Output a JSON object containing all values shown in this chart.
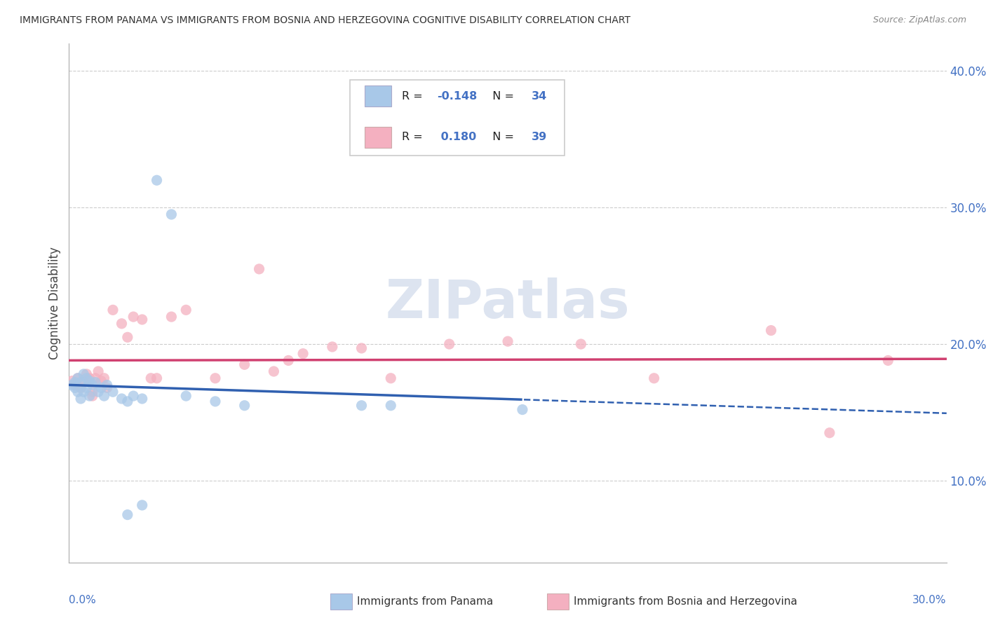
{
  "title": "IMMIGRANTS FROM PANAMA VS IMMIGRANTS FROM BOSNIA AND HERZEGOVINA COGNITIVE DISABILITY CORRELATION CHART",
  "source": "Source: ZipAtlas.com",
  "ylabel": "Cognitive Disability",
  "xlim": [
    0.0,
    0.3
  ],
  "ylim": [
    0.04,
    0.42
  ],
  "yticks": [
    0.1,
    0.2,
    0.3,
    0.4
  ],
  "ytick_labels": [
    "10.0%",
    "20.0%",
    "30.0%",
    "40.0%"
  ],
  "color_panama": "#a8c8e8",
  "color_bosnia": "#f4b0c0",
  "color_line_panama": "#3060b0",
  "color_line_bosnia": "#d04070",
  "background_color": "#ffffff",
  "panama_x": [
    0.001,
    0.002,
    0.002,
    0.003,
    0.003,
    0.004,
    0.004,
    0.005,
    0.005,
    0.006,
    0.006,
    0.007,
    0.007,
    0.008,
    0.009,
    0.01,
    0.011,
    0.012,
    0.013,
    0.015,
    0.018,
    0.02,
    0.022,
    0.025,
    0.03,
    0.035,
    0.04,
    0.05,
    0.06,
    0.11,
    0.155,
    0.02,
    0.025,
    0.1
  ],
  "panama_y": [
    0.17,
    0.172,
    0.168,
    0.175,
    0.165,
    0.172,
    0.16,
    0.178,
    0.165,
    0.175,
    0.168,
    0.173,
    0.162,
    0.17,
    0.172,
    0.165,
    0.168,
    0.162,
    0.17,
    0.165,
    0.16,
    0.158,
    0.162,
    0.16,
    0.32,
    0.295,
    0.162,
    0.158,
    0.155,
    0.155,
    0.152,
    0.075,
    0.082,
    0.155
  ],
  "bosnia_x": [
    0.001,
    0.002,
    0.003,
    0.004,
    0.005,
    0.006,
    0.007,
    0.008,
    0.009,
    0.01,
    0.011,
    0.012,
    0.013,
    0.015,
    0.018,
    0.02,
    0.022,
    0.025,
    0.028,
    0.03,
    0.035,
    0.04,
    0.05,
    0.06,
    0.065,
    0.07,
    0.075,
    0.08,
    0.09,
    0.1,
    0.11,
    0.13,
    0.15,
    0.175,
    0.2,
    0.24,
    0.26,
    0.008,
    0.28
  ],
  "bosnia_y": [
    0.173,
    0.17,
    0.175,
    0.168,
    0.172,
    0.178,
    0.175,
    0.165,
    0.175,
    0.18,
    0.173,
    0.175,
    0.168,
    0.225,
    0.215,
    0.205,
    0.22,
    0.218,
    0.175,
    0.175,
    0.22,
    0.225,
    0.175,
    0.185,
    0.255,
    0.18,
    0.188,
    0.193,
    0.198,
    0.197,
    0.175,
    0.2,
    0.202,
    0.2,
    0.175,
    0.21,
    0.135,
    0.162,
    0.188
  ],
  "marker_size": 120,
  "grid_color": "#cccccc",
  "grid_style": "--",
  "watermark_text": "ZIPatlas",
  "watermark_color": "#dde4f0",
  "watermark_fontsize": 55,
  "r_panama": "-0.148",
  "n_panama": "34",
  "r_bosnia": "0.180",
  "n_bosnia": "39"
}
